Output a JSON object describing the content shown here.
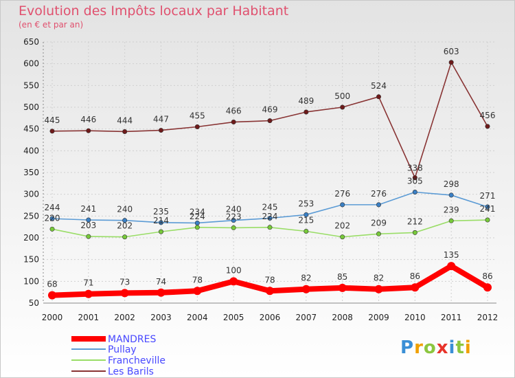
{
  "chart_data": {
    "type": "line",
    "title": "Evolution des Impôts locaux par Habitant",
    "subtitle": "(en € et par an)",
    "xlabel": "",
    "ylabel": "",
    "ylim": [
      50,
      650
    ],
    "y_ticks": [
      50,
      100,
      150,
      200,
      250,
      300,
      350,
      400,
      450,
      500,
      550,
      600,
      650
    ],
    "x": [
      "2000",
      "2001",
      "2002",
      "2003",
      "2004",
      "2005",
      "2006",
      "2007",
      "2008",
      "2009",
      "2010",
      "2011",
      "2012"
    ],
    "legend_position": "bottom-left",
    "series": [
      {
        "name": "MANDRES",
        "color": "#ff0000",
        "marker": "#ff0000",
        "values": [
          68,
          71,
          73,
          74,
          78,
          100,
          78,
          82,
          85,
          82,
          86,
          135,
          86
        ]
      },
      {
        "name": "Pullay",
        "color": "#5b9bd5",
        "marker": "#3a7fc4",
        "values": [
          244,
          241,
          240,
          235,
          234,
          240,
          245,
          253,
          276,
          276,
          305,
          298,
          271
        ]
      },
      {
        "name": "Francheville",
        "color": "#99dd66",
        "marker": "#77c93a",
        "values": [
          220,
          203,
          202,
          214,
          224,
          223,
          224,
          215,
          202,
          209,
          212,
          239,
          241
        ]
      },
      {
        "name": "Les Barils",
        "color": "#883333",
        "marker": "#6e1a1a",
        "values": [
          445,
          446,
          444,
          447,
          455,
          466,
          469,
          489,
          500,
          524,
          338,
          603,
          456
        ]
      }
    ]
  },
  "logo": {
    "text": "Proxiti"
  }
}
